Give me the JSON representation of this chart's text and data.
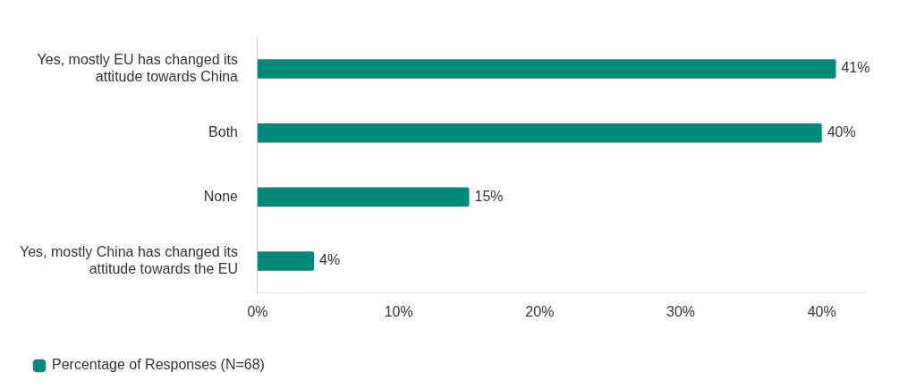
{
  "chart_data": {
    "type": "bar",
    "orientation": "horizontal",
    "categories": [
      "Yes, mostly EU has changed its attitude towards China",
      "Both",
      "None",
      "Yes, mostly China has changed its attitude towards the EU"
    ],
    "series": [
      {
        "name": "Percentage of Responses (N=68)",
        "color": "#00897b",
        "values": [
          41,
          40,
          15,
          4
        ],
        "value_labels": [
          "41%",
          "40%",
          "15%",
          "4%"
        ]
      }
    ],
    "xlim": [
      0,
      43
    ],
    "xticks": [
      {
        "value": 0,
        "label": "0%"
      },
      {
        "value": 10,
        "label": "10%"
      },
      {
        "value": 20,
        "label": "20%"
      },
      {
        "value": 30,
        "label": "30%"
      },
      {
        "value": 40,
        "label": "40%"
      }
    ],
    "grid": false,
    "legend": "bottom left"
  }
}
